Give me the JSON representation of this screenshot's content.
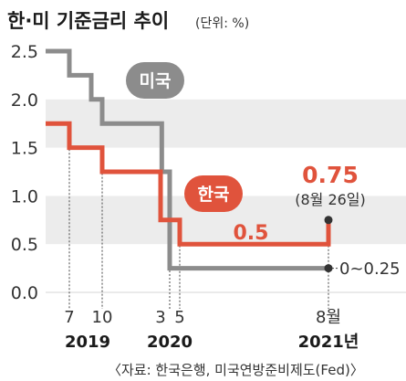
{
  "title": "한·미 기준금리 추이",
  "unit": "(단위: %)",
  "source": "〈자료: 한국은행, 미국연방준비제도(Fed)〉",
  "colors": {
    "us": "#8c8c8c",
    "korea": "#e0533c",
    "band": "#ececec"
  },
  "chart_data": {
    "type": "line",
    "ylim": [
      0,
      2.5
    ],
    "y_ticks": [
      "0.0",
      "0.5",
      "1.0",
      "1.5",
      "2.0",
      "2.5"
    ],
    "x_ticks": [
      "7",
      "10",
      "3",
      "5",
      "8월"
    ],
    "x_years": [
      "2019",
      "2020",
      "2021년"
    ],
    "series": [
      {
        "name": "미국",
        "step": true,
        "points": [
          {
            "x": "2019-01",
            "y": 2.5
          },
          {
            "x": "2019-07",
            "y": 2.25
          },
          {
            "x": "2019-09",
            "y": 2.0
          },
          {
            "x": "2019-10",
            "y": 1.75
          },
          {
            "x": "2020-03-03",
            "y": 1.25
          },
          {
            "x": "2020-03-16",
            "y": 0.25
          },
          {
            "x": "2021-08",
            "y": 0.25
          }
        ],
        "end_label": "0~0.25"
      },
      {
        "name": "한국",
        "step": true,
        "points": [
          {
            "x": "2019-01",
            "y": 1.75
          },
          {
            "x": "2019-07",
            "y": 1.5
          },
          {
            "x": "2019-10",
            "y": 1.25
          },
          {
            "x": "2020-03",
            "y": 0.75
          },
          {
            "x": "2020-05",
            "y": 0.5
          },
          {
            "x": "2021-08-26",
            "y": 0.75
          }
        ],
        "mid_label": "0.5",
        "end_label": "0.75",
        "end_note": "(8월 26일)"
      }
    ]
  }
}
